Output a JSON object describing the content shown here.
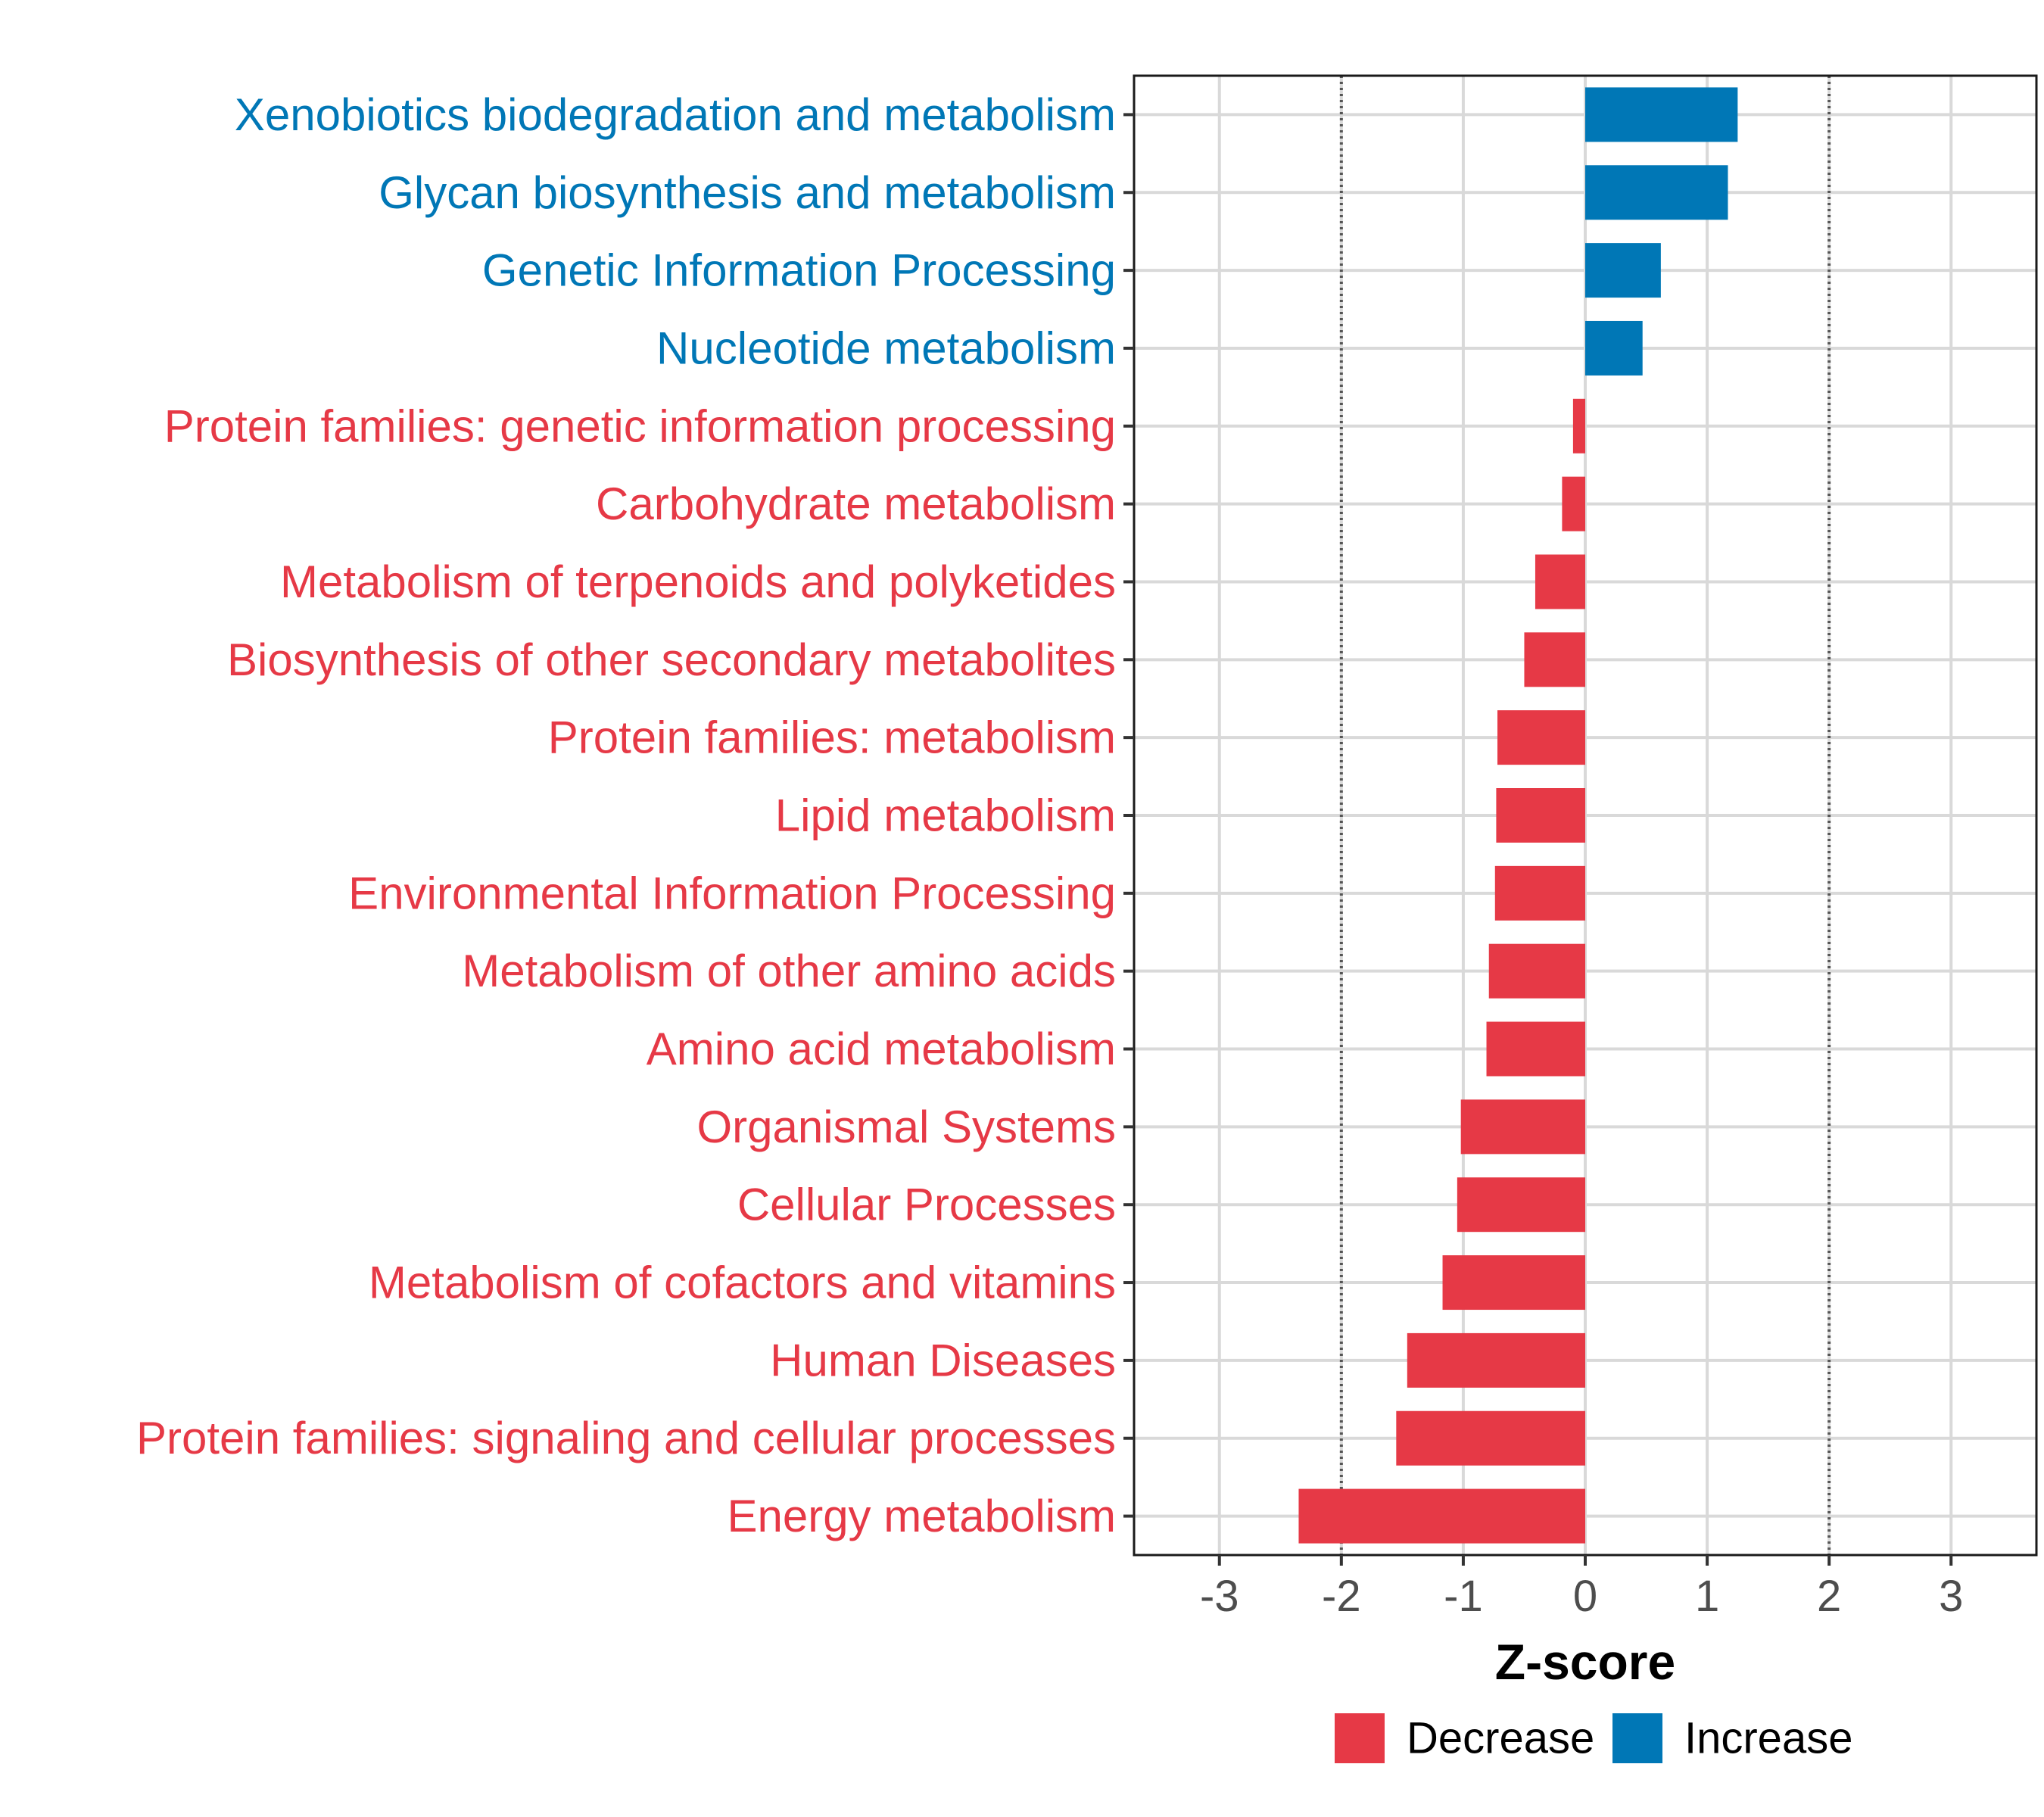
{
  "chart_data": {
    "type": "bar",
    "orientation": "horizontal",
    "title": "",
    "xlabel": "Z-score",
    "ylabel": "",
    "xlim": [
      -3.7,
      3.7
    ],
    "xticks": [
      -3,
      -2,
      -1,
      0,
      1,
      2,
      3
    ],
    "reference_lines": [
      -2,
      2
    ],
    "grid": true,
    "categories": [
      "Xenobiotics biodegradation and metabolism",
      "Glycan biosynthesis and metabolism",
      "Genetic Information Processing",
      "Nucleotide metabolism",
      "Protein families: genetic information processing",
      "Carbohydrate metabolism",
      "Metabolism of terpenoids and polyketides",
      "Biosynthesis of other secondary metabolites",
      "Protein families: metabolism",
      "Lipid metabolism",
      "Environmental Information Processing",
      "Metabolism of other amino acids",
      "Amino acid metabolism",
      "Organismal Systems",
      "Cellular Processes",
      "Metabolism of cofactors and vitamins",
      "Human Diseases",
      "Protein families: signaling and cellular processes",
      "Energy metabolism"
    ],
    "values": [
      1.25,
      1.17,
      0.62,
      0.47,
      -0.1,
      -0.19,
      -0.41,
      -0.5,
      -0.72,
      -0.73,
      -0.74,
      -0.79,
      -0.81,
      -1.02,
      -1.05,
      -1.17,
      -1.46,
      -1.55,
      -2.35
    ],
    "groups": [
      "Increase",
      "Increase",
      "Increase",
      "Increase",
      "Decrease",
      "Decrease",
      "Decrease",
      "Decrease",
      "Decrease",
      "Decrease",
      "Decrease",
      "Decrease",
      "Decrease",
      "Decrease",
      "Decrease",
      "Decrease",
      "Decrease",
      "Decrease",
      "Decrease"
    ],
    "legend": {
      "placement": "bottom",
      "entries": [
        {
          "label": "Decrease",
          "color": "#E63946"
        },
        {
          "label": "Increase",
          "color": "#0077B6"
        }
      ]
    },
    "colors": {
      "Decrease": "#E63946",
      "Increase": "#0077B6"
    }
  }
}
